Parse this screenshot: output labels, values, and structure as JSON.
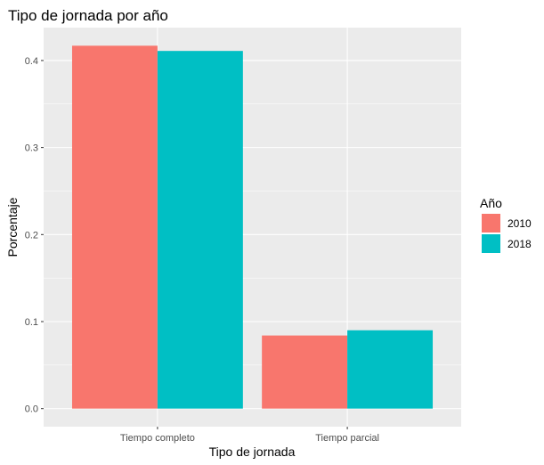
{
  "chart_data": {
    "type": "bar",
    "title": "Tipo de jornada por año",
    "xlabel": "Tipo de jornada",
    "ylabel": "Porcentaje",
    "categories": [
      "Tiempo completo",
      "Tiempo parcial"
    ],
    "series": [
      {
        "name": "2010",
        "values": [
          0.417,
          0.084
        ],
        "color": "#F8766D"
      },
      {
        "name": "2018",
        "values": [
          0.411,
          0.09
        ],
        "color": "#00BFC4"
      }
    ],
    "ylim": [
      -0.0208,
      0.4378
    ],
    "yticks": [
      0.0,
      0.1,
      0.2,
      0.3,
      0.4
    ],
    "ytick_labels": [
      "0.0",
      "0.1",
      "0.2",
      "0.3",
      "0.4"
    ],
    "grid": true,
    "panel_background": "#EBEBEB",
    "legend": {
      "title": "Año",
      "position": "right"
    }
  }
}
